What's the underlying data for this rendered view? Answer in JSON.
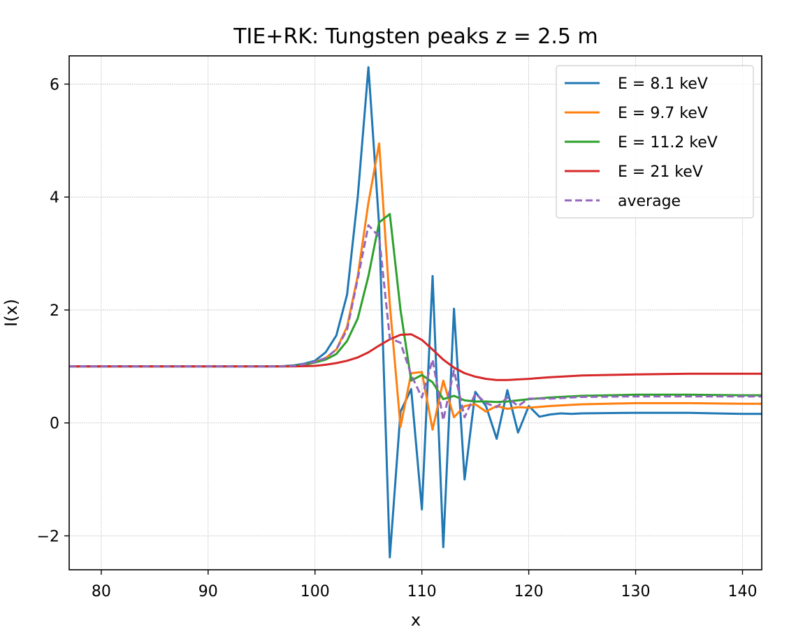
{
  "chart_data": {
    "type": "line",
    "title": "TIE+RK: Tungsten peaks  z = 2.5 m",
    "xlabel": "x",
    "ylabel": "I(x)",
    "xlim": [
      77,
      141.8
    ],
    "ylim": [
      -2.6,
      6.5
    ],
    "xticks": [
      80,
      90,
      100,
      110,
      120,
      130,
      140
    ],
    "yticks": [
      -2,
      0,
      2,
      4,
      6
    ],
    "xtick_labels": [
      "80",
      "90",
      "100",
      "110",
      "120",
      "130",
      "140"
    ],
    "ytick_labels": [
      "−2",
      "0",
      "2",
      "4",
      "6"
    ],
    "grid": true,
    "legend_position": "top-right",
    "series": [
      {
        "name": "E = 8.1 keV",
        "color": "#1f77b4",
        "style": "solid",
        "points": [
          [
            77,
            1.0
          ],
          [
            80,
            1.0
          ],
          [
            85,
            1.0
          ],
          [
            90,
            1.0
          ],
          [
            95,
            1.0
          ],
          [
            97,
            1.005
          ],
          [
            98,
            1.02
          ],
          [
            99,
            1.05
          ],
          [
            100,
            1.1
          ],
          [
            101,
            1.25
          ],
          [
            102,
            1.55
          ],
          [
            103,
            2.27
          ],
          [
            104,
            4.0
          ],
          [
            105,
            6.3
          ],
          [
            106,
            3.5
          ],
          [
            107,
            -2.38
          ],
          [
            108,
            0.2
          ],
          [
            109,
            0.6
          ],
          [
            110,
            -1.53
          ],
          [
            111,
            2.6
          ],
          [
            112,
            -2.2
          ],
          [
            113,
            2.02
          ],
          [
            114,
            -1.0
          ],
          [
            115,
            0.55
          ],
          [
            116,
            0.3
          ],
          [
            117,
            -0.28
          ],
          [
            118,
            0.58
          ],
          [
            119,
            -0.17
          ],
          [
            120,
            0.3
          ],
          [
            121,
            0.11
          ],
          [
            122,
            0.15
          ],
          [
            123,
            0.17
          ],
          [
            124,
            0.16
          ],
          [
            125,
            0.17
          ],
          [
            130,
            0.18
          ],
          [
            135,
            0.18
          ],
          [
            140,
            0.16
          ],
          [
            141.8,
            0.16
          ]
        ]
      },
      {
        "name": "E = 9.7 keV",
        "color": "#ff7f0e",
        "style": "solid",
        "points": [
          [
            77,
            1.0
          ],
          [
            80,
            1.0
          ],
          [
            85,
            1.0
          ],
          [
            90,
            1.0
          ],
          [
            95,
            1.0
          ],
          [
            97,
            1.0
          ],
          [
            98,
            1.01
          ],
          [
            99,
            1.03
          ],
          [
            100,
            1.08
          ],
          [
            101,
            1.15
          ],
          [
            102,
            1.3
          ],
          [
            103,
            1.7
          ],
          [
            104,
            2.6
          ],
          [
            105,
            3.9
          ],
          [
            106,
            4.95
          ],
          [
            107,
            2.1
          ],
          [
            108,
            -0.07
          ],
          [
            109,
            0.88
          ],
          [
            110,
            0.9
          ],
          [
            111,
            -0.12
          ],
          [
            112,
            0.75
          ],
          [
            113,
            0.1
          ],
          [
            114,
            0.3
          ],
          [
            115,
            0.33
          ],
          [
            116,
            0.2
          ],
          [
            117,
            0.3
          ],
          [
            118,
            0.25
          ],
          [
            119,
            0.28
          ],
          [
            120,
            0.27
          ],
          [
            122,
            0.3
          ],
          [
            125,
            0.33
          ],
          [
            130,
            0.35
          ],
          [
            135,
            0.35
          ],
          [
            140,
            0.34
          ],
          [
            141.8,
            0.34
          ]
        ]
      },
      {
        "name": "E = 11.2 keV",
        "color": "#2ca02c",
        "style": "solid",
        "points": [
          [
            77,
            1.0
          ],
          [
            80,
            1.0
          ],
          [
            85,
            1.0
          ],
          [
            90,
            1.0
          ],
          [
            95,
            1.0
          ],
          [
            97,
            1.0
          ],
          [
            98,
            1.01
          ],
          [
            99,
            1.03
          ],
          [
            100,
            1.07
          ],
          [
            101,
            1.12
          ],
          [
            102,
            1.22
          ],
          [
            103,
            1.45
          ],
          [
            104,
            1.85
          ],
          [
            105,
            2.6
          ],
          [
            106,
            3.55
          ],
          [
            107,
            3.7
          ],
          [
            108,
            2.0
          ],
          [
            109,
            0.75
          ],
          [
            110,
            0.85
          ],
          [
            111,
            0.72
          ],
          [
            112,
            0.42
          ],
          [
            113,
            0.48
          ],
          [
            114,
            0.4
          ],
          [
            115,
            0.38
          ],
          [
            116,
            0.38
          ],
          [
            117,
            0.37
          ],
          [
            118,
            0.38
          ],
          [
            119,
            0.4
          ],
          [
            120,
            0.42
          ],
          [
            122,
            0.45
          ],
          [
            125,
            0.48
          ],
          [
            130,
            0.5
          ],
          [
            135,
            0.5
          ],
          [
            140,
            0.49
          ],
          [
            141.8,
            0.49
          ]
        ]
      },
      {
        "name": "E = 21 keV",
        "color": "#d62728",
        "style": "solid",
        "points": [
          [
            77,
            1.0
          ],
          [
            80,
            1.0
          ],
          [
            85,
            1.0
          ],
          [
            90,
            1.0
          ],
          [
            95,
            1.0
          ],
          [
            97,
            1.0
          ],
          [
            98,
            1.0
          ],
          [
            99,
            1.005
          ],
          [
            100,
            1.01
          ],
          [
            101,
            1.03
          ],
          [
            102,
            1.06
          ],
          [
            103,
            1.1
          ],
          [
            104,
            1.16
          ],
          [
            105,
            1.25
          ],
          [
            106,
            1.37
          ],
          [
            107,
            1.48
          ],
          [
            108,
            1.56
          ],
          [
            109,
            1.57
          ],
          [
            110,
            1.47
          ],
          [
            111,
            1.3
          ],
          [
            112,
            1.12
          ],
          [
            113,
            0.98
          ],
          [
            114,
            0.88
          ],
          [
            115,
            0.82
          ],
          [
            116,
            0.78
          ],
          [
            117,
            0.76
          ],
          [
            118,
            0.76
          ],
          [
            119,
            0.77
          ],
          [
            120,
            0.78
          ],
          [
            122,
            0.81
          ],
          [
            125,
            0.84
          ],
          [
            130,
            0.86
          ],
          [
            135,
            0.87
          ],
          [
            140,
            0.87
          ],
          [
            141.8,
            0.87
          ]
        ]
      },
      {
        "name": "average",
        "color": "#9467bd",
        "style": "dashed",
        "points": [
          [
            77,
            1.0
          ],
          [
            80,
            1.0
          ],
          [
            85,
            1.0
          ],
          [
            90,
            1.0
          ],
          [
            95,
            1.0
          ],
          [
            97,
            1.0
          ],
          [
            98,
            1.01
          ],
          [
            99,
            1.04
          ],
          [
            100,
            1.08
          ],
          [
            101,
            1.15
          ],
          [
            102,
            1.3
          ],
          [
            103,
            1.65
          ],
          [
            104,
            2.55
          ],
          [
            105,
            3.5
          ],
          [
            106,
            3.3
          ],
          [
            107,
            1.5
          ],
          [
            108,
            1.42
          ],
          [
            109,
            0.85
          ],
          [
            110,
            0.45
          ],
          [
            111,
            1.12
          ],
          [
            112,
            0.05
          ],
          [
            113,
            0.93
          ],
          [
            114,
            0.1
          ],
          [
            115,
            0.52
          ],
          [
            116,
            0.35
          ],
          [
            117,
            0.28
          ],
          [
            118,
            0.45
          ],
          [
            119,
            0.3
          ],
          [
            120,
            0.43
          ],
          [
            122,
            0.43
          ],
          [
            125,
            0.46
          ],
          [
            130,
            0.47
          ],
          [
            135,
            0.47
          ],
          [
            140,
            0.47
          ],
          [
            141.8,
            0.47
          ]
        ]
      }
    ]
  }
}
